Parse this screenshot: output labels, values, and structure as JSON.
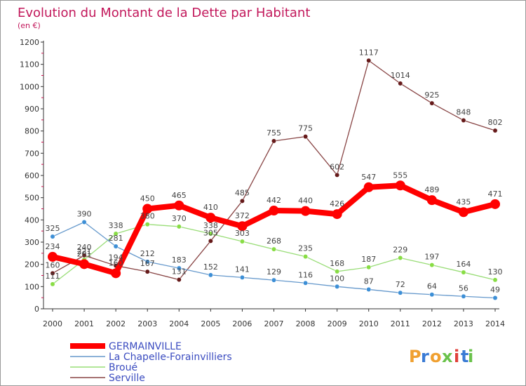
{
  "title": "Evolution du Montant de la Dette par Habitant",
  "subtitle": "(en €)",
  "brand": "Proxiti",
  "chart_data": {
    "type": "line",
    "x": [
      "2000",
      "2001",
      "2002",
      "2003",
      "2004",
      "2005",
      "2006",
      "2007",
      "2008",
      "2009",
      "2010",
      "2011",
      "2012",
      "2013",
      "2014"
    ],
    "yticks": [
      0,
      100,
      200,
      300,
      400,
      500,
      600,
      700,
      800,
      900,
      1000,
      1100,
      1200
    ],
    "ylim": [
      0,
      1200
    ],
    "grid": false,
    "legend": "bottom-left",
    "series": [
      {
        "name": "GERMAINVILLE",
        "color": "#ff0000",
        "point_color": "#ff0000",
        "emphasis": true,
        "values": [
          234,
          201,
          160,
          450,
          465,
          410,
          372,
          442,
          440,
          426,
          547,
          555,
          489,
          435,
          471
        ]
      },
      {
        "name": "La Chapelle-Forainvilliers",
        "color": "#6699cc",
        "point_color": "#3d8fd6",
        "values": [
          325,
          390,
          281,
          212,
          183,
          152,
          141,
          129,
          116,
          100,
          87,
          72,
          64,
          56,
          49
        ]
      },
      {
        "name": "Broué",
        "color": "#99dd77",
        "point_color": "#88dd44",
        "values": [
          111,
          221,
          338,
          380,
          370,
          338,
          303,
          268,
          235,
          168,
          187,
          229,
          197,
          164,
          130
        ]
      },
      {
        "name": "Serville",
        "color": "#884444",
        "point_color": "#661a1a",
        "values": [
          160,
          240,
          194,
          167,
          131,
          305,
          485,
          755,
          775,
          602,
          1117,
          1014,
          925,
          848,
          802
        ]
      }
    ]
  },
  "colors": {
    "title": "#c2185b",
    "axis": "#333333",
    "tick_mark": "#d01050",
    "label": "#444444",
    "legend_text": "#3b4cc0",
    "frame": "#999999"
  }
}
